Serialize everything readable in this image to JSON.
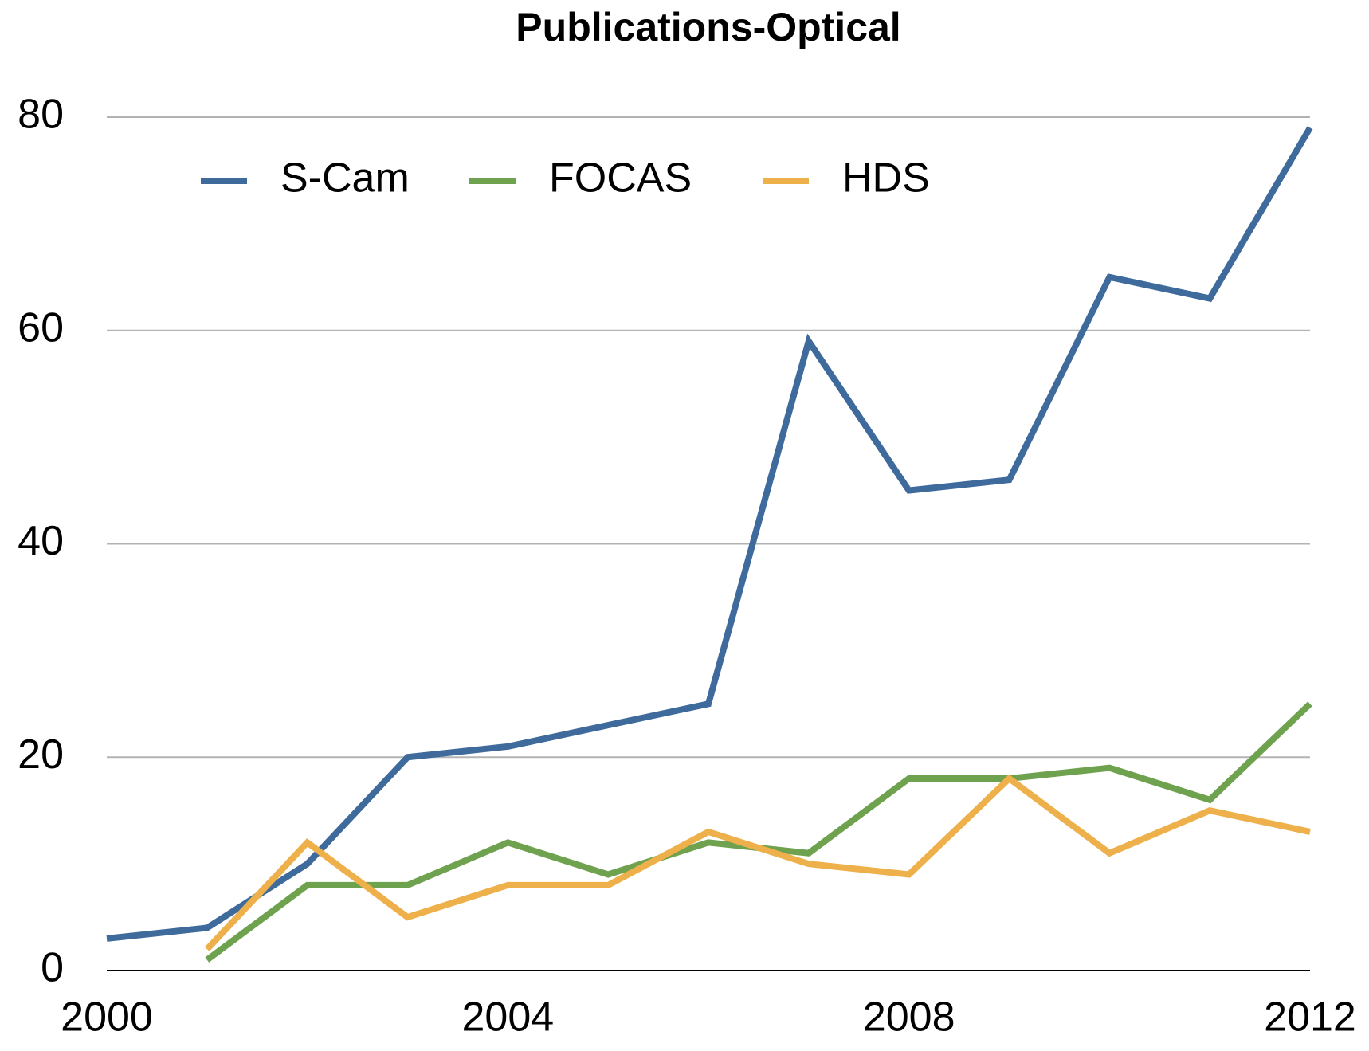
{
  "chart_data": {
    "type": "line",
    "title": "Publications-Optical",
    "x": [
      2000,
      2001,
      2002,
      2003,
      2004,
      2005,
      2006,
      2007,
      2008,
      2009,
      2010,
      2011,
      2012
    ],
    "series": [
      {
        "name": "S-Cam",
        "color": "#3e6a9c",
        "values": [
          3,
          4,
          10,
          20,
          21,
          23,
          25,
          59,
          45,
          46,
          65,
          63,
          79
        ]
      },
      {
        "name": "FOCAS",
        "color": "#6fa24f",
        "values": [
          null,
          1,
          8,
          8,
          12,
          9,
          12,
          11,
          18,
          18,
          19,
          16,
          25
        ]
      },
      {
        "name": "HDS",
        "color": "#eeb04a",
        "values": [
          null,
          2,
          12,
          5,
          8,
          8,
          13,
          10,
          9,
          18,
          11,
          15,
          13
        ]
      }
    ],
    "xlim": [
      2000,
      2012
    ],
    "xticks": [
      2000,
      2004,
      2008,
      2012
    ],
    "ylim": [
      0,
      80
    ],
    "yticks": [
      0,
      20,
      40,
      60,
      80
    ],
    "grid": true,
    "legend": "top"
  }
}
